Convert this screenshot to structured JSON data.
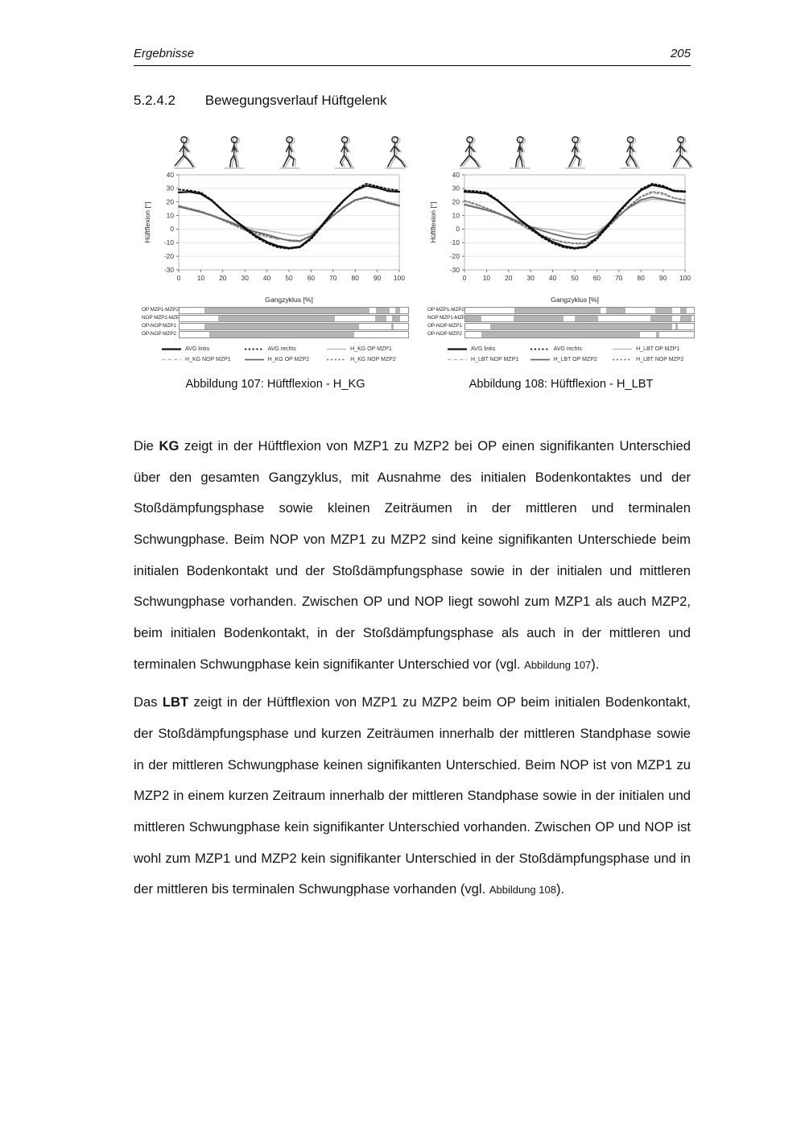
{
  "header": {
    "section_title": "Ergebnisse",
    "page_number": "205"
  },
  "heading": {
    "number": "5.2.4.2",
    "title": "Bewegungsverlauf Hüftgelenk"
  },
  "figures": [
    {
      "caption": "Abbildung 107: Hüftflexion - H_KG",
      "sig_rows": [
        {
          "label": "OP MZP1-MZP2",
          "segments": [
            [
              11,
              83
            ],
            [
              86,
              92
            ],
            [
              94.5,
              96.5
            ]
          ]
        },
        {
          "label": "NOP MZP1-MZP2",
          "segments": [
            [
              17,
              68
            ],
            [
              85.5,
              90.5
            ],
            [
              93,
              96.5
            ]
          ]
        },
        {
          "label": "OP-NOP MZP1",
          "segments": [
            [
              11,
              78.5
            ],
            [
              92.5,
              93.5
            ]
          ]
        },
        {
          "label": "OP-NOP MZP2",
          "segments": [
            [
              13,
              76.5
            ]
          ]
        }
      ],
      "legend": [
        {
          "label": "AVG links",
          "style": "black-solid"
        },
        {
          "label": "AVG rechts",
          "style": "black-dotted"
        },
        {
          "label": "H_KG OP MZP1",
          "style": "lgray-solid"
        },
        {
          "label": "H_KG NOP MZP1",
          "style": "lgray-dashed"
        },
        {
          "label": "H_KG OP MZP2",
          "style": "dgray-solid"
        },
        {
          "label": "H_KG NOP MZP2",
          "style": "dgray-dotted"
        }
      ]
    },
    {
      "caption": "Abbildung 108: Hüftflexion - H_LBT",
      "sig_rows": [
        {
          "label": "OP MZP1-MZP2",
          "segments": [
            [
              21.5,
              59
            ],
            [
              61.5,
              70
            ],
            [
              83,
              90.5
            ],
            [
              94,
              97
            ]
          ]
        },
        {
          "label": "NOP MZP1-MZP2",
          "segments": [
            [
              0,
              7
            ],
            [
              21,
              43
            ],
            [
              48,
              58
            ],
            [
              81,
              90.5
            ],
            [
              94,
              99
            ]
          ]
        },
        {
          "label": "OP-NOP MZP1",
          "segments": [
            [
              11,
              90.5
            ],
            [
              92,
              93
            ]
          ]
        },
        {
          "label": "OP-NOP MZP2",
          "segments": [
            [
              7,
              76.5
            ],
            [
              83.5,
              85
            ]
          ]
        }
      ],
      "legend": [
        {
          "label": "AVG links",
          "style": "black-solid"
        },
        {
          "label": "AVG rechts",
          "style": "black-dotted"
        },
        {
          "label": "H_LBT OP MZP1",
          "style": "lgray-solid"
        },
        {
          "label": "H_LBT NOP MZP1",
          "style": "lgray-dashed"
        },
        {
          "label": "H_LBT OP MZP2",
          "style": "dgray-solid"
        },
        {
          "label": "H_LBT NOP MZP2",
          "style": "dgray-dotted"
        }
      ]
    }
  ],
  "chart_data": [
    {
      "type": "line",
      "title": "Hüftflexion - H_KG",
      "xlabel": "Gangzyklus [%]",
      "ylabel": "Hüftflexion [°]",
      "xlim": [
        0,
        100
      ],
      "ylim": [
        -30,
        40
      ],
      "xticks": [
        0,
        10,
        20,
        30,
        40,
        50,
        60,
        70,
        80,
        90,
        100
      ],
      "yticks": [
        40,
        30,
        20,
        10,
        0,
        -10,
        -20,
        -30
      ],
      "grid": true,
      "legend_position": "bottom",
      "x": [
        0,
        5,
        10,
        15,
        20,
        25,
        30,
        35,
        40,
        45,
        50,
        55,
        60,
        65,
        70,
        75,
        80,
        85,
        90,
        95,
        100
      ],
      "series": [
        {
          "name": "AVG links",
          "style": "black-solid",
          "values": [
            27,
            27.5,
            26,
            21,
            13.5,
            7,
            1,
            -5,
            -9.5,
            -12.5,
            -14,
            -13,
            -6.5,
            3,
            13,
            21.5,
            28.5,
            32,
            30.5,
            28,
            27.5
          ]
        },
        {
          "name": "AVG rechts",
          "style": "black-dotted",
          "values": [
            29,
            28.5,
            27,
            21.5,
            14,
            7,
            0,
            -6,
            -10.5,
            -13.5,
            -14.5,
            -13.5,
            -7.5,
            2,
            12,
            21,
            29,
            33.5,
            31.5,
            29.5,
            28.5
          ]
        },
        {
          "name": "H_KG OP MZP1",
          "style": "lgray-solid",
          "values": [
            17,
            15,
            13,
            10.5,
            7.5,
            4.5,
            1.5,
            0,
            -1,
            -2.5,
            -4,
            -5,
            -3,
            3,
            10,
            16.5,
            21.5,
            23.5,
            22,
            19.5,
            17.5
          ]
        },
        {
          "name": "H_KG NOP MZP1",
          "style": "lgray-dashed",
          "values": [
            17.5,
            15.5,
            13.5,
            10.5,
            7,
            3,
            -1,
            -4,
            -6,
            -7.5,
            -8,
            -8.5,
            -5,
            2,
            9.5,
            16,
            21,
            24,
            22.5,
            20,
            18
          ]
        },
        {
          "name": "H_KG OP MZP2",
          "style": "dgray-solid",
          "values": [
            16.5,
            14.5,
            12.5,
            10,
            7,
            4,
            0.5,
            -2,
            -4,
            -6.5,
            -8.5,
            -9,
            -5,
            2.5,
            10,
            16.5,
            21.5,
            23.5,
            21.5,
            19,
            17
          ]
        },
        {
          "name": "H_KG NOP MZP2",
          "style": "dgray-dotted",
          "values": [
            17,
            15,
            13,
            10,
            6.5,
            3,
            -0.5,
            -3,
            -5,
            -7,
            -8,
            -8.5,
            -4.5,
            3,
            10,
            16,
            21,
            23,
            22,
            19.5,
            17.5
          ]
        }
      ]
    },
    {
      "type": "line",
      "title": "Hüftflexion - H_LBT",
      "xlabel": "Gangzyklus [%]",
      "ylabel": "Hüftflexion [°]",
      "xlim": [
        0,
        100
      ],
      "ylim": [
        -30,
        40
      ],
      "xticks": [
        0,
        10,
        20,
        30,
        40,
        50,
        60,
        70,
        80,
        90,
        100
      ],
      "yticks": [
        40,
        30,
        20,
        10,
        0,
        -10,
        -20,
        -30
      ],
      "grid": true,
      "legend_position": "bottom",
      "x": [
        0,
        5,
        10,
        15,
        20,
        25,
        30,
        35,
        40,
        45,
        50,
        55,
        60,
        65,
        70,
        75,
        80,
        85,
        90,
        95,
        100
      ],
      "series": [
        {
          "name": "AVG links",
          "style": "black-solid",
          "values": [
            27.5,
            27,
            26,
            21,
            14,
            7,
            1,
            -5,
            -9.5,
            -12.5,
            -14,
            -13,
            -6.5,
            3,
            13,
            21.5,
            28.5,
            32.5,
            31,
            28,
            27.5
          ]
        },
        {
          "name": "AVG rechts",
          "style": "black-dotted",
          "values": [
            28.5,
            28,
            27,
            21.5,
            14.5,
            7,
            0,
            -6,
            -10.5,
            -13.5,
            -14.5,
            -13.5,
            -7.5,
            2,
            12,
            21,
            29.5,
            33.5,
            32,
            28.5,
            28
          ]
        },
        {
          "name": "H_LBT OP MZP1",
          "style": "lgray-solid",
          "values": [
            18.5,
            16.5,
            14.5,
            12,
            9,
            5.5,
            2,
            0.5,
            -0.5,
            -2,
            -3.5,
            -4,
            -2,
            4,
            10.5,
            16,
            20,
            22,
            21.5,
            20,
            18.5
          ]
        },
        {
          "name": "H_LBT NOP MZP1",
          "style": "lgray-dashed",
          "values": [
            20.5,
            18,
            15,
            11.5,
            7.5,
            3.5,
            -1,
            -5,
            -8,
            -10,
            -11,
            -11,
            -7,
            1,
            9,
            17,
            23.5,
            26.5,
            25.5,
            22.5,
            21
          ]
        },
        {
          "name": "H_LBT OP MZP2",
          "style": "dgray-solid",
          "values": [
            18,
            16,
            14,
            11.5,
            8.5,
            5,
            1.5,
            -1,
            -3.5,
            -5.5,
            -7,
            -7.5,
            -4,
            3,
            10,
            16.5,
            21.5,
            23.5,
            22,
            20.5,
            19
          ]
        },
        {
          "name": "H_LBT NOP MZP2",
          "style": "dgray-dotted",
          "values": [
            21,
            18.5,
            15.5,
            12,
            8,
            4,
            -0.5,
            -4.5,
            -7.5,
            -9.5,
            -10.5,
            -10.5,
            -6.5,
            1.5,
            9.5,
            17.5,
            24,
            27.5,
            26.5,
            23,
            21.5
          ]
        }
      ]
    }
  ],
  "paragraphs": [
    {
      "parts": [
        {
          "t": "Die ",
          "s": "n"
        },
        {
          "t": "KG",
          "s": "b"
        },
        {
          "t": " zeigt in der Hüftflexion von MZP1 zu MZP2 bei OP einen signifikanten Unterschied über den gesamten Gangzyklus, mit Ausnahme des initialen Bodenkontaktes und der Stoßdämpfungsphase sowie kleinen Zeiträumen in der mittleren und terminalen Schwungphase. Beim NOP von MZP1 zu MZP2 sind keine signifikanten Unterschiede beim initialen Bodenkontakt und der Stoßdämpfungsphase sowie in der initialen und mittleren Schwungphase vorhanden. Zwischen OP und NOP liegt sowohl zum MZP1 als auch MZP2, beim initialen Bodenkontakt, in der Stoßdämpfungsphase als auch in der mittleren und terminalen Schwungphase kein signifikanter Unterschied vor (vgl. ",
          "s": "n"
        },
        {
          "t": "Abbildung 107",
          "s": "sm"
        },
        {
          "t": ").",
          "s": "n"
        }
      ]
    },
    {
      "parts": [
        {
          "t": "Das ",
          "s": "n"
        },
        {
          "t": "LBT",
          "s": "b"
        },
        {
          "t": " zeigt in der Hüftflexion von MZP1 zu MZP2 beim OP beim initialen Bodenkontakt, der Stoßdämpfungsphase und kurzen Zeiträumen innerhalb der mittleren Standphase sowie in der mittleren Schwungphase keinen signifikanten Unterschied. Beim NOP ist von MZP1 zu MZP2 in einem kurzen Zeitraum innerhalb der mittleren Standphase sowie in der initialen und mittleren Schwungphase kein signifikanter Unterschied vorhanden. Zwischen OP und NOP ist wohl zum MZP1 und MZP2 kein signifikanter Unterschied in der Stoßdämpfungsphase und in der mittleren bis terminalen Schwungphase vorhanden (vgl. ",
          "s": "n"
        },
        {
          "t": "Abbildung 108",
          "s": "sm"
        },
        {
          "t": ").",
          "s": "n"
        }
      ]
    }
  ],
  "colors": {
    "text": "#161616",
    "curve_black": "#111111",
    "curve_light_gray": "#bcbcbc",
    "curve_mid_gray": "#adadad",
    "curve_dark_gray": "#666666",
    "sig_fill": "#b4b4b4",
    "sig_border": "#8c8c8c",
    "grid": "#dcdcdc",
    "plot_border": "#b7b7b7"
  }
}
